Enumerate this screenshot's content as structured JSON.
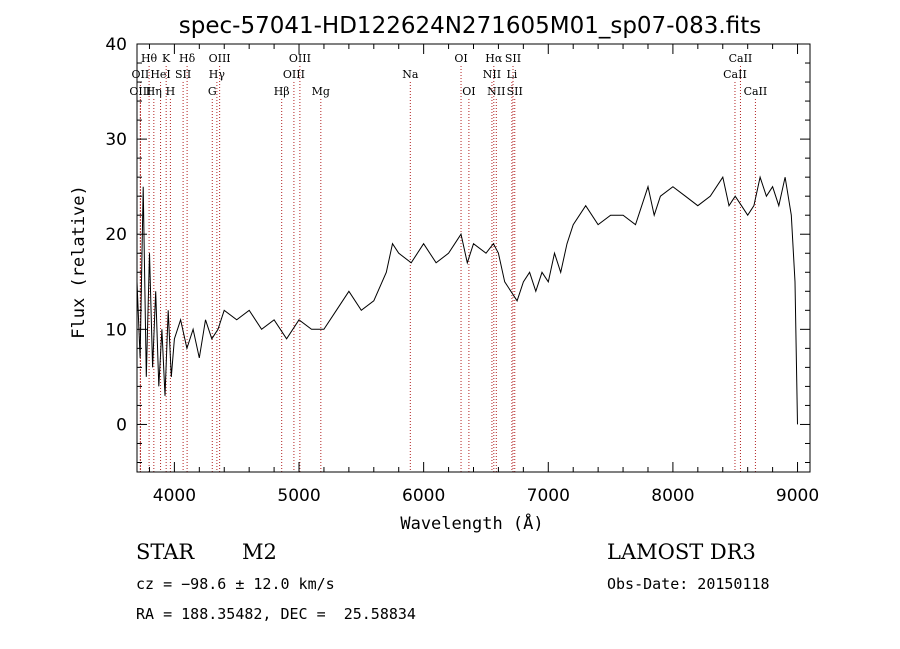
{
  "chart_data": {
    "type": "line",
    "title": "spec-57041-HD122624N271605M01_sp07-083.fits",
    "xlabel": "Wavelength (Å)",
    "ylabel": "Flux (relative)",
    "xlim": [
      3700,
      9100
    ],
    "ylim": [
      -5,
      40
    ],
    "xticks": [
      4000,
      5000,
      6000,
      7000,
      8000,
      9000
    ],
    "yticks": [
      0,
      10,
      20,
      30,
      40
    ],
    "grid": false,
    "series": [
      {
        "x": [
          3700,
          3725,
          3750,
          3775,
          3800,
          3825,
          3850,
          3875,
          3900,
          3925,
          3950,
          3975,
          4000,
          4050,
          4100,
          4150,
          4200,
          4250,
          4300,
          4350,
          4400,
          4500,
          4600,
          4700,
          4800,
          4900,
          5000,
          5100,
          5200,
          5300,
          5400,
          5500,
          5600,
          5700,
          5750,
          5800,
          5900,
          6000,
          6100,
          6200,
          6300,
          6350,
          6400,
          6500,
          6560,
          6600,
          6650,
          6700,
          6750,
          6800,
          6850,
          6900,
          6950,
          7000,
          7050,
          7100,
          7150,
          7200,
          7300,
          7400,
          7500,
          7600,
          7700,
          7800,
          7850,
          7900,
          8000,
          8100,
          8200,
          8300,
          8400,
          8450,
          8500,
          8550,
          8600,
          8650,
          8700,
          8750,
          8800,
          8850,
          8900,
          8950,
          8980,
          9000
        ],
        "y": [
          15,
          7,
          25,
          5,
          18,
          6,
          14,
          4,
          10,
          3,
          12,
          5,
          9,
          11,
          8,
          10,
          7,
          11,
          9,
          10,
          12,
          11,
          12,
          10,
          11,
          9,
          11,
          10,
          10,
          12,
          14,
          12,
          13,
          16,
          19,
          18,
          17,
          19,
          17,
          18,
          20,
          17,
          19,
          18,
          19,
          18,
          15,
          14,
          13,
          15,
          16,
          14,
          16,
          15,
          18,
          16,
          19,
          21,
          23,
          21,
          22,
          22,
          21,
          25,
          22,
          24,
          25,
          24,
          23,
          24,
          26,
          23,
          24,
          23,
          22,
          23,
          26,
          24,
          25,
          23,
          26,
          22,
          15,
          0
        ]
      }
    ],
    "spectral_lines": [
      {
        "label": "Hθ",
        "x": 3797,
        "row": 1
      },
      {
        "label": "OII",
        "x": 3727,
        "row": 2
      },
      {
        "label": "OIII",
        "x": 3727,
        "row": 3
      },
      {
        "label": "K",
        "x": 3934,
        "row": 1
      },
      {
        "label": "HeI",
        "x": 3889,
        "row": 2
      },
      {
        "label": "Hη",
        "x": 3835,
        "row": 3
      },
      {
        "label": "Hδ",
        "x": 4102,
        "row": 1
      },
      {
        "label": "SII",
        "x": 4070,
        "row": 2
      },
      {
        "label": "H",
        "x": 3968,
        "row": 3
      },
      {
        "label": "OIII",
        "x": 4363,
        "row": 1
      },
      {
        "label": "Hγ",
        "x": 4341,
        "row": 2
      },
      {
        "label": "G",
        "x": 4304,
        "row": 3
      },
      {
        "label": "OIII",
        "x": 5007,
        "row": 1
      },
      {
        "label": "OIII",
        "x": 4959,
        "row": 2
      },
      {
        "label": "Hβ",
        "x": 4861,
        "row": 3
      },
      {
        "label": "Mg",
        "x": 5175,
        "row": 3
      },
      {
        "label": "Na",
        "x": 5893,
        "row": 2
      },
      {
        "label": "OI",
        "x": 6300,
        "row": 1
      },
      {
        "label": "OI",
        "x": 6363,
        "row": 3
      },
      {
        "label": "Hα",
        "x": 6563,
        "row": 1
      },
      {
        "label": "SII",
        "x": 6717,
        "row": 1
      },
      {
        "label": "NII",
        "x": 6548,
        "row": 2
      },
      {
        "label": "Li",
        "x": 6708,
        "row": 2
      },
      {
        "label": "NII",
        "x": 6583,
        "row": 3
      },
      {
        "label": "SII",
        "x": 6731,
        "row": 3
      },
      {
        "label": "CaII",
        "x": 8542,
        "row": 1
      },
      {
        "label": "CaII",
        "x": 8498,
        "row": 2
      },
      {
        "label": "CaII",
        "x": 8662,
        "row": 3
      }
    ]
  },
  "info": {
    "object_class": "STAR",
    "subclass": "M2",
    "survey": "LAMOST DR3",
    "cz": "cz = −98.6 ± 12.0 km/s",
    "obs_date": "Obs-Date: 20150118",
    "coords": "RA = 188.35482, DEC =  25.58834"
  },
  "colors": {
    "line_marker": "#b22222",
    "spectrum": "#000000"
  }
}
